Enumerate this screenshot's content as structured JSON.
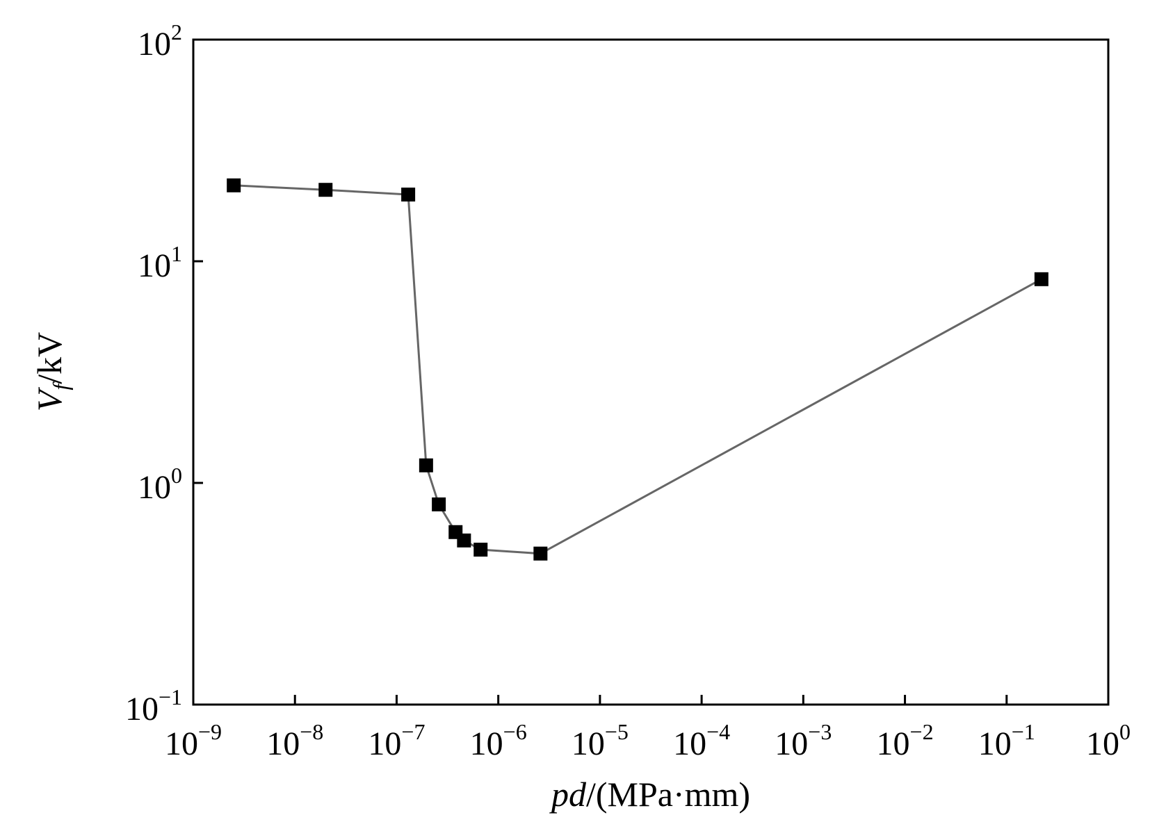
{
  "chart_data": {
    "type": "line",
    "xscale": "log",
    "yscale": "log",
    "xlim": [
      1e-09,
      1
    ],
    "ylim": [
      0.1,
      100
    ],
    "xlabel": {
      "italic": "pd",
      "rest": "/(MPa·mm)"
    },
    "ylabel": {
      "italic": "V",
      "subscript": "f",
      "rest": "/kV"
    },
    "xticks": [
      {
        "value": 1e-09,
        "base": "10",
        "exp": "−9"
      },
      {
        "value": 1e-08,
        "base": "10",
        "exp": "−8"
      },
      {
        "value": 1e-07,
        "base": "10",
        "exp": "−7"
      },
      {
        "value": 1e-06,
        "base": "10",
        "exp": "−6"
      },
      {
        "value": 1e-05,
        "base": "10",
        "exp": "−5"
      },
      {
        "value": 0.0001,
        "base": "10",
        "exp": "−4"
      },
      {
        "value": 0.001,
        "base": "10",
        "exp": "−3"
      },
      {
        "value": 0.01,
        "base": "10",
        "exp": "−2"
      },
      {
        "value": 0.1,
        "base": "10",
        "exp": "−1"
      },
      {
        "value": 1,
        "base": "10",
        "exp": "0"
      }
    ],
    "yticks": [
      {
        "value": 0.1,
        "base": "10",
        "exp": "−1"
      },
      {
        "value": 1,
        "base": "10",
        "exp": "0"
      },
      {
        "value": 10,
        "base": "10",
        "exp": "1"
      },
      {
        "value": 100,
        "base": "10",
        "exp": "2"
      }
    ],
    "series": [
      {
        "marker": "square",
        "color": "#000000",
        "line_color": "#666666",
        "x": [
          2.5e-09,
          2e-08,
          1.3e-07,
          1.95e-07,
          2.6e-07,
          3.8e-07,
          4.6e-07,
          6.7e-07,
          2.6e-06,
          0.22
        ],
        "y": [
          22,
          21,
          20,
          1.2,
          0.8,
          0.6,
          0.55,
          0.5,
          0.48,
          8.3
        ]
      }
    ]
  }
}
